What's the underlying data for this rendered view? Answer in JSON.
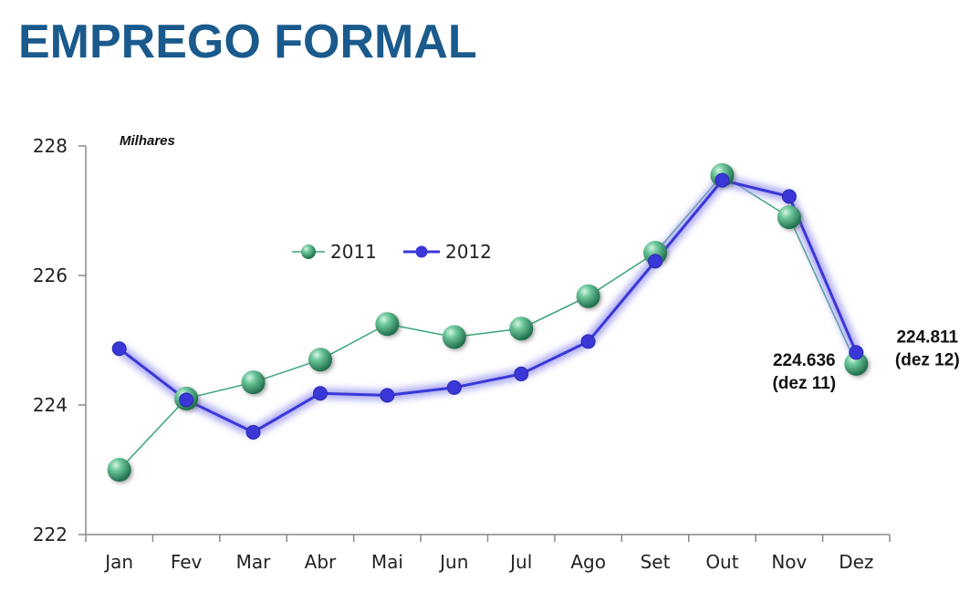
{
  "title": "EMPREGO FORMAL",
  "chart_data": {
    "type": "line",
    "title": "EMPREGO FORMAL",
    "ylabel": "Milhares",
    "xlabel": "",
    "categories": [
      "Jan",
      "Fev",
      "Mar",
      "Abr",
      "Mai",
      "Jun",
      "Jul",
      "Ago",
      "Set",
      "Out",
      "Nov",
      "Dez"
    ],
    "ylim": [
      222,
      228
    ],
    "yticks": [
      "222",
      "224",
      "226",
      "228"
    ],
    "series": [
      {
        "name": "2011",
        "color": "#3aa37a",
        "values": [
          223.0,
          224.1,
          224.35,
          224.7,
          225.25,
          225.05,
          225.18,
          225.68,
          226.35,
          227.55,
          226.9,
          224.636
        ]
      },
      {
        "name": "2012",
        "color": "#3a37d6",
        "values": [
          224.87,
          224.08,
          223.58,
          224.18,
          224.15,
          224.27,
          224.48,
          224.98,
          226.22,
          227.47,
          227.22,
          224.811
        ]
      }
    ],
    "legend_position": "top-center",
    "grid": false,
    "annotations": [
      {
        "series": "2012",
        "index": 11,
        "lines": [
          "224.811",
          "(dez 12)"
        ]
      },
      {
        "series": "2011",
        "index": 11,
        "lines": [
          "224.636",
          "(dez 11)"
        ]
      }
    ]
  }
}
